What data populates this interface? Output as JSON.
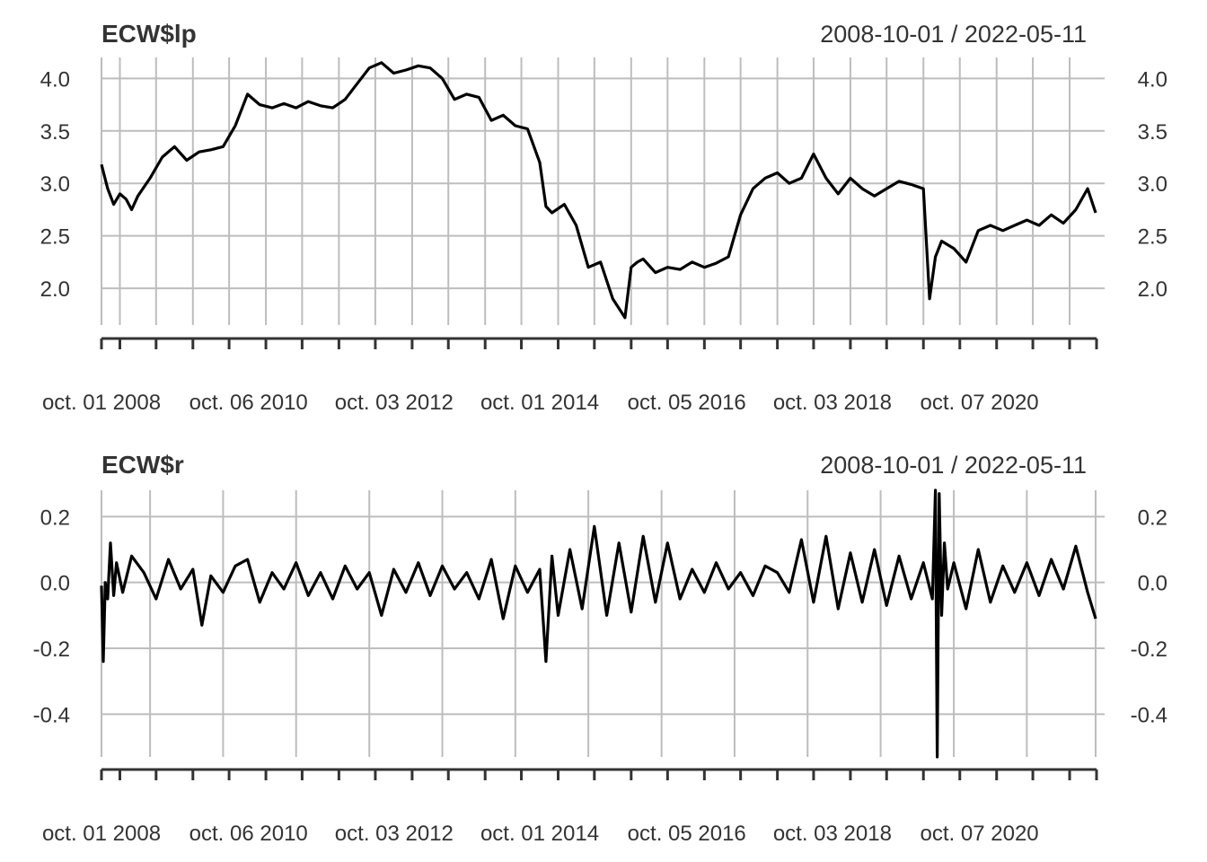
{
  "chart_data": [
    {
      "type": "line",
      "title": "ECW$lp",
      "date_range": "2008-10-01 / 2022-05-11",
      "ylim": [
        1.65,
        4.2
      ],
      "y_ticks": [
        4.0,
        3.5,
        3.0,
        2.5,
        2.0
      ],
      "y_tick_labels": [
        "4.0",
        "3.5",
        "3.0",
        "2.5",
        "2.0"
      ],
      "x_tick_labels": [
        "oct. 01 2008",
        "oct. 06 2010",
        "oct. 03 2012",
        "oct. 01 2014",
        "oct. 05 2016",
        "oct. 03 2018",
        "oct. 07 2020"
      ],
      "grid": true,
      "series": [
        {
          "x": [
            "2008-10-01",
            "2008-11-01",
            "2008-12-01",
            "2009-01-01",
            "2009-02-01",
            "2009-03-01",
            "2009-04-01",
            "2009-06-01",
            "2009-08-01",
            "2009-10-01",
            "2009-12-01",
            "2010-02-01",
            "2010-04-01",
            "2010-06-01",
            "2010-08-01",
            "2010-10-01",
            "2010-12-01",
            "2011-02-01",
            "2011-04-01",
            "2011-06-01",
            "2011-08-01",
            "2011-10-01",
            "2011-12-01",
            "2012-02-01",
            "2012-04-01",
            "2012-06-01",
            "2012-08-01",
            "2012-10-01",
            "2012-12-01",
            "2013-02-01",
            "2013-04-01",
            "2013-06-01",
            "2013-08-01",
            "2013-10-01",
            "2013-12-01",
            "2014-02-01",
            "2014-04-01",
            "2014-06-01",
            "2014-08-01",
            "2014-10-01",
            "2014-11-01",
            "2014-12-01",
            "2015-02-01",
            "2015-04-01",
            "2015-06-01",
            "2015-08-01",
            "2015-10-01",
            "2015-12-01",
            "2016-01-01",
            "2016-02-01",
            "2016-03-01",
            "2016-05-01",
            "2016-07-01",
            "2016-09-01",
            "2016-11-01",
            "2017-01-01",
            "2017-03-01",
            "2017-05-01",
            "2017-07-01",
            "2017-09-01",
            "2017-11-01",
            "2018-01-01",
            "2018-03-01",
            "2018-05-01",
            "2018-07-01",
            "2018-09-01",
            "2018-11-01",
            "2019-01-01",
            "2019-03-01",
            "2019-05-01",
            "2019-07-01",
            "2019-09-01",
            "2019-11-01",
            "2020-01-01",
            "2020-02-01",
            "2020-03-01",
            "2020-04-01",
            "2020-06-01",
            "2020-08-01",
            "2020-10-01",
            "2020-12-01",
            "2021-02-01",
            "2021-04-01",
            "2021-06-01",
            "2021-08-01",
            "2021-10-01",
            "2021-12-01",
            "2022-02-01",
            "2022-04-01",
            "2022-05-11"
          ],
          "values": [
            3.18,
            2.95,
            2.8,
            2.9,
            2.85,
            2.75,
            2.88,
            3.05,
            3.25,
            3.35,
            3.22,
            3.3,
            3.32,
            3.35,
            3.55,
            3.85,
            3.75,
            3.72,
            3.76,
            3.72,
            3.78,
            3.74,
            3.72,
            3.8,
            3.95,
            4.1,
            4.15,
            4.05,
            4.08,
            4.12,
            4.1,
            4.0,
            3.8,
            3.85,
            3.82,
            3.6,
            3.65,
            3.55,
            3.52,
            3.2,
            2.78,
            2.72,
            2.8,
            2.6,
            2.2,
            2.25,
            1.9,
            1.72,
            2.2,
            2.25,
            2.28,
            2.15,
            2.2,
            2.18,
            2.25,
            2.2,
            2.24,
            2.3,
            2.7,
            2.95,
            3.05,
            3.1,
            3.0,
            3.05,
            3.28,
            3.05,
            2.9,
            3.05,
            2.95,
            2.88,
            2.95,
            3.02,
            2.99,
            2.95,
            1.9,
            2.3,
            2.45,
            2.38,
            2.25,
            2.55,
            2.6,
            2.55,
            2.6,
            2.65,
            2.6,
            2.7,
            2.62,
            2.75,
            2.95,
            2.72
          ]
        }
      ]
    },
    {
      "type": "line",
      "title": "ECW$r",
      "date_range": "2008-10-01 / 2022-05-11",
      "ylim": [
        -0.53,
        0.28
      ],
      "y_ticks": [
        0.2,
        0.0,
        -0.2,
        -0.4
      ],
      "y_tick_labels": [
        "0.2",
        "0.0",
        "-0.2",
        "-0.4"
      ],
      "x_tick_labels": [
        "oct. 01 2008",
        "oct. 06 2010",
        "oct. 03 2012",
        "oct. 01 2014",
        "oct. 05 2016",
        "oct. 03 2018",
        "oct. 07 2020"
      ],
      "grid": true,
      "series": [
        {
          "x": [
            "2008-10-01",
            "2008-10-10",
            "2008-10-20",
            "2008-11-01",
            "2008-11-15",
            "2008-12-01",
            "2008-12-15",
            "2009-01-15",
            "2009-03-01",
            "2009-05-01",
            "2009-07-01",
            "2009-09-01",
            "2009-11-01",
            "2010-01-01",
            "2010-02-15",
            "2010-04-01",
            "2010-06-01",
            "2010-08-01",
            "2010-10-01",
            "2010-12-01",
            "2011-02-01",
            "2011-04-01",
            "2011-06-01",
            "2011-08-01",
            "2011-10-01",
            "2011-12-01",
            "2012-02-01",
            "2012-04-01",
            "2012-06-01",
            "2012-08-01",
            "2012-10-01",
            "2012-12-01",
            "2013-02-01",
            "2013-04-01",
            "2013-06-01",
            "2013-08-01",
            "2013-10-01",
            "2013-12-01",
            "2014-02-01",
            "2014-04-01",
            "2014-06-01",
            "2014-08-01",
            "2014-10-01",
            "2014-11-01",
            "2014-12-01",
            "2015-01-01",
            "2015-03-01",
            "2015-05-01",
            "2015-07-01",
            "2015-09-01",
            "2015-11-01",
            "2016-01-01",
            "2016-03-01",
            "2016-05-01",
            "2016-07-01",
            "2016-09-01",
            "2016-11-01",
            "2017-01-01",
            "2017-03-01",
            "2017-05-01",
            "2017-07-01",
            "2017-09-01",
            "2017-11-01",
            "2018-01-01",
            "2018-03-01",
            "2018-05-01",
            "2018-07-01",
            "2018-09-01",
            "2018-11-01",
            "2019-01-01",
            "2019-03-01",
            "2019-05-01",
            "2019-07-01",
            "2019-09-01",
            "2019-11-01",
            "2020-01-01",
            "2020-02-15",
            "2020-03-01",
            "2020-03-10",
            "2020-03-20",
            "2020-04-01",
            "2020-04-15",
            "2020-05-01",
            "2020-06-01",
            "2020-08-01",
            "2020-10-01",
            "2020-12-01",
            "2021-02-01",
            "2021-04-01",
            "2021-06-01",
            "2021-08-01",
            "2021-10-01",
            "2021-12-01",
            "2022-02-01",
            "2022-04-01",
            "2022-05-11"
          ],
          "values": [
            -0.01,
            -0.24,
            0.0,
            -0.05,
            0.12,
            -0.04,
            0.06,
            -0.03,
            0.08,
            0.03,
            -0.05,
            0.07,
            -0.02,
            0.04,
            -0.13,
            0.02,
            -0.03,
            0.05,
            0.07,
            -0.06,
            0.03,
            -0.02,
            0.06,
            -0.04,
            0.03,
            -0.05,
            0.05,
            -0.02,
            0.03,
            -0.1,
            0.04,
            -0.03,
            0.06,
            -0.04,
            0.05,
            -0.02,
            0.03,
            -0.05,
            0.07,
            -0.11,
            0.05,
            -0.03,
            0.04,
            -0.24,
            0.08,
            -0.1,
            0.1,
            -0.08,
            0.17,
            -0.1,
            0.12,
            -0.09,
            0.14,
            -0.06,
            0.12,
            -0.05,
            0.04,
            -0.03,
            0.06,
            -0.02,
            0.03,
            -0.04,
            0.05,
            0.03,
            -0.03,
            0.13,
            -0.06,
            0.14,
            -0.08,
            0.09,
            -0.06,
            0.1,
            -0.07,
            0.08,
            -0.05,
            0.06,
            -0.05,
            0.28,
            -0.53,
            0.27,
            -0.1,
            0.12,
            -0.02,
            0.06,
            -0.08,
            0.1,
            -0.06,
            0.05,
            -0.03,
            0.06,
            -0.04,
            0.07,
            -0.02,
            0.11,
            -0.03,
            -0.11
          ]
        }
      ]
    }
  ]
}
